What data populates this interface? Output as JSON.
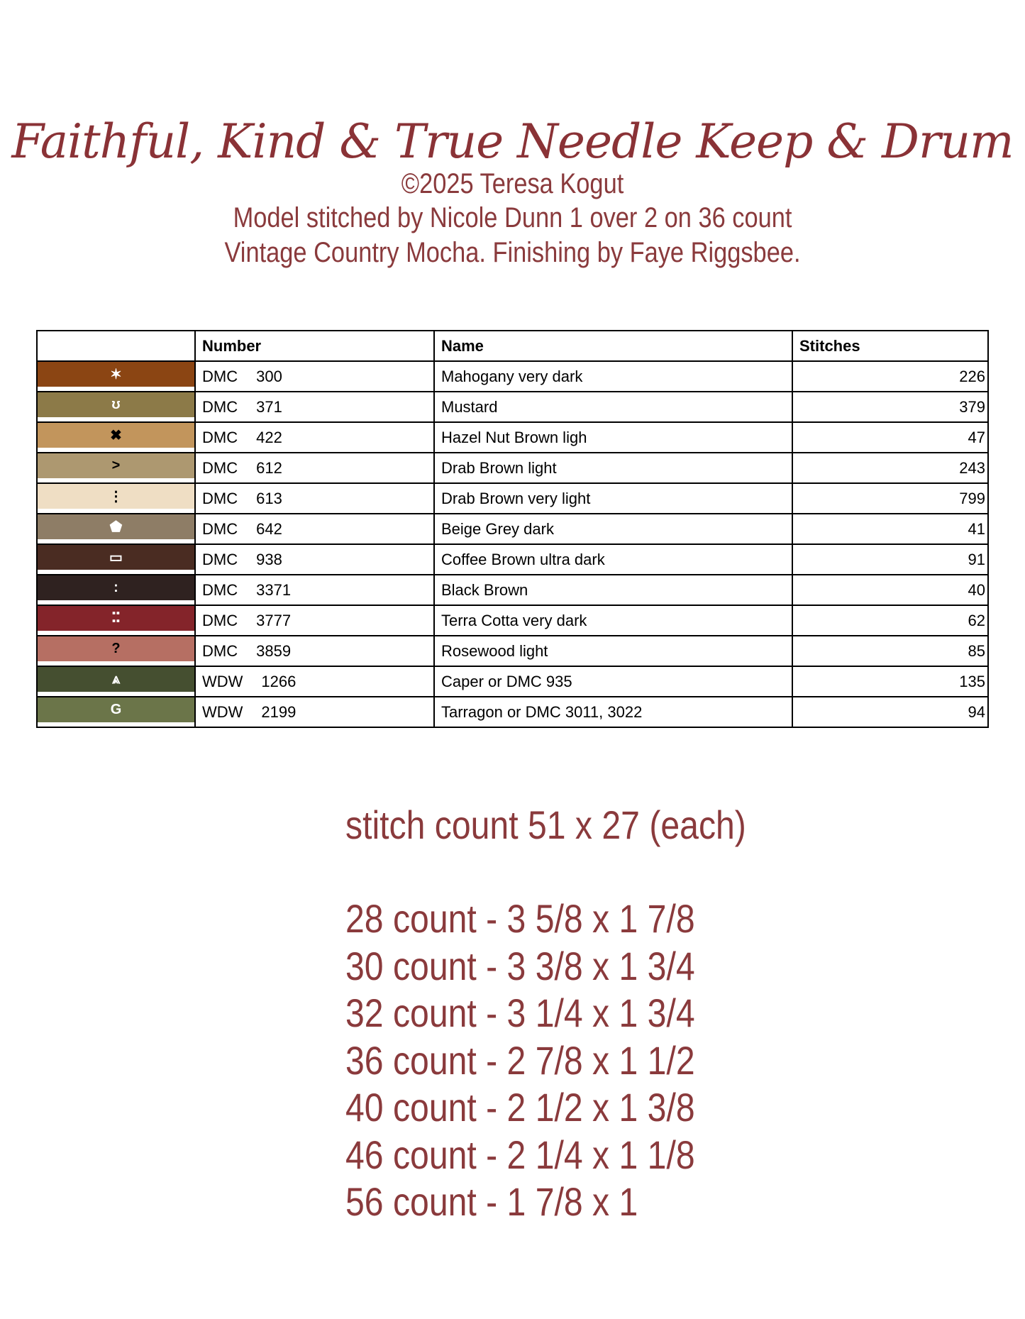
{
  "header": {
    "title": "Faithful, Kind & True Needle Keep & Drum",
    "copyright": "©2025 Teresa Kogut",
    "model_line1": "Model stitched by Nicole Dunn 1 over 2 on 36 count",
    "model_line2": "Vintage Country Mocha. Finishing by Faye Riggsbee."
  },
  "table": {
    "headers": [
      "",
      "Number",
      "Name",
      "Stitches"
    ],
    "rows": [
      {
        "color": "#8b4513",
        "symbol": "✶",
        "symbol_color": "#ffffff",
        "brand": "DMC",
        "number": "300",
        "name": "Mahogany very dark",
        "stitches": "226"
      },
      {
        "color": "#8c7a48",
        "symbol": "ʊ",
        "symbol_color": "#ffffff",
        "brand": "DMC",
        "number": "371",
        "name": "Mustard",
        "stitches": "379"
      },
      {
        "color": "#c2955c",
        "symbol": "✖",
        "symbol_color": "#000000",
        "brand": "DMC",
        "number": "422",
        "name": "Hazel Nut Brown ligh",
        "stitches": "47"
      },
      {
        "color": "#ad9870",
        "symbol": ">",
        "symbol_color": "#000000",
        "brand": "DMC",
        "number": "612",
        "name": "Drab Brown light",
        "stitches": "243"
      },
      {
        "color": "#efdec4",
        "symbol": "⋮",
        "symbol_color": "#000000",
        "brand": "DMC",
        "number": "613",
        "name": "Drab Brown very light",
        "stitches": "799"
      },
      {
        "color": "#8e7d66",
        "symbol": "⬟",
        "symbol_color": "#ffffff",
        "brand": "DMC",
        "number": "642",
        "name": "Beige Grey dark",
        "stitches": "41"
      },
      {
        "color": "#4a2c22",
        "symbol": "▭",
        "symbol_color": "#ffffff",
        "brand": "DMC",
        "number": "938",
        "name": "Coffee Brown ultra dark",
        "stitches": "91"
      },
      {
        "color": "#2f2220",
        "symbol": ":",
        "symbol_color": "#ffffff",
        "brand": "DMC",
        "number": "3371",
        "name": "Black Brown",
        "stitches": "40"
      },
      {
        "color": "#84242a",
        "symbol": "⠭",
        "symbol_color": "#ffffff",
        "brand": "DMC",
        "number": "3777",
        "name": "Terra Cotta very dark",
        "stitches": "62"
      },
      {
        "color": "#b66f63",
        "symbol": "?",
        "symbol_color": "#000000",
        "brand": "DMC",
        "number": "3859",
        "name": "Rosewood light",
        "stitches": "85"
      },
      {
        "color": "#454f30",
        "symbol": "⩓",
        "symbol_color": "#ffffff",
        "brand": "WDW",
        "number": "1266",
        "name": "Caper or DMC 935",
        "stitches": "135"
      },
      {
        "color": "#6b7549",
        "symbol": "G",
        "symbol_color": "#ffffff",
        "brand": "WDW",
        "number": "2199",
        "name": "Tarragon or DMC 3011, 3022",
        "stitches": "94"
      }
    ]
  },
  "stitch_count": "stitch count 51 x 27 (each)",
  "sizes": [
    "28 count - 3 5/8 x 1 7/8",
    "30 count - 3 3/8 x 1 3/4",
    "32 count - 3 1/4 x 1 3/4",
    "36 count - 2 7/8 x 1 1/2",
    "40 count - 2 1/2 x 1 3/8",
    "46 count - 2 1/4 x 1 1/8",
    "56 count - 1 7/8 x 1"
  ]
}
